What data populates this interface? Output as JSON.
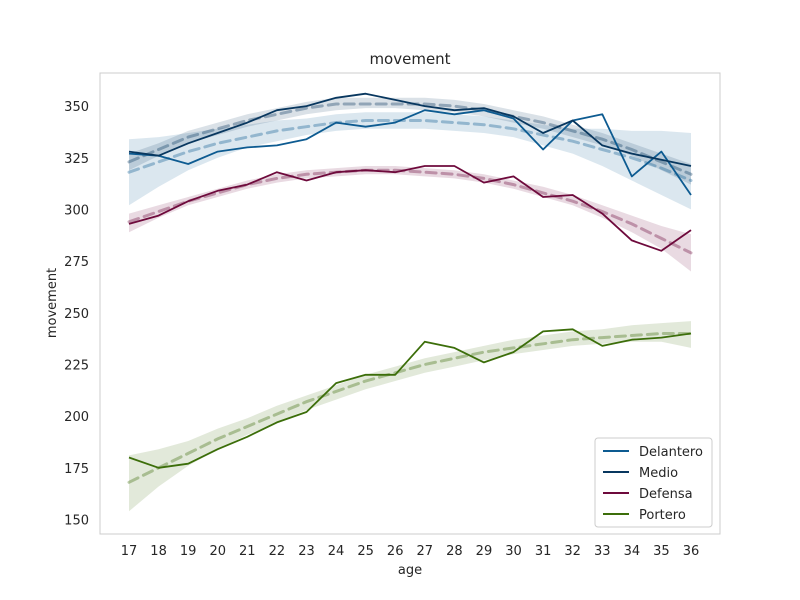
{
  "chart_data": {
    "type": "line",
    "title": "movement",
    "xlabel": "age",
    "ylabel": "movement",
    "ylim": [
      143,
      366
    ],
    "yticks": [
      150,
      175,
      200,
      225,
      250,
      275,
      300,
      325,
      350
    ],
    "x": [
      17,
      18,
      19,
      20,
      21,
      22,
      23,
      24,
      25,
      26,
      27,
      28,
      29,
      30,
      31,
      32,
      33,
      34,
      35,
      36
    ],
    "grid": false,
    "legend_position": "lower-right",
    "series": [
      {
        "name": "Delantero",
        "color": "#0d5b91",
        "values": [
          327,
          326,
          322,
          328,
          330,
          331,
          334,
          342,
          340,
          342,
          348,
          346,
          348,
          344,
          329,
          343,
          346,
          316,
          328,
          307
        ],
        "trend": [
          318,
          323,
          328,
          332,
          335,
          338,
          340,
          342,
          343,
          343,
          343,
          342,
          341,
          339,
          336,
          333,
          329,
          325,
          320,
          314
        ],
        "band": [
          [
            302,
            334
          ],
          [
            311,
            335
          ],
          [
            319,
            337
          ],
          [
            325,
            339
          ],
          [
            330,
            341
          ],
          [
            333,
            343
          ],
          [
            336,
            344
          ],
          [
            338,
            346
          ],
          [
            339,
            347
          ],
          [
            339,
            347
          ],
          [
            339,
            347
          ],
          [
            338,
            346
          ],
          [
            337,
            345
          ],
          [
            335,
            343
          ],
          [
            331,
            341
          ],
          [
            327,
            339
          ],
          [
            321,
            339
          ],
          [
            314,
            338
          ],
          [
            307,
            338
          ],
          [
            300,
            337
          ]
        ]
      },
      {
        "name": "Medio",
        "color": "#08375f",
        "values": [
          328,
          326,
          332,
          337,
          342,
          348,
          350,
          354,
          356,
          353,
          350,
          348,
          349,
          345,
          337,
          343,
          331,
          327,
          324,
          321
        ],
        "trend": [
          323,
          329,
          335,
          339,
          343,
          346,
          349,
          351,
          351,
          351,
          351,
          350,
          348,
          345,
          342,
          338,
          334,
          329,
          323,
          317
        ],
        "band": [
          [
            319,
            327
          ],
          [
            326,
            332
          ],
          [
            332,
            338
          ],
          [
            336,
            342
          ],
          [
            340,
            346
          ],
          [
            343,
            349
          ],
          [
            346,
            352
          ],
          [
            348,
            354
          ],
          [
            349,
            354
          ],
          [
            349,
            354
          ],
          [
            348,
            354
          ],
          [
            347,
            353
          ],
          [
            345,
            351
          ],
          [
            342,
            348
          ],
          [
            339,
            345
          ],
          [
            335,
            341
          ],
          [
            331,
            337
          ],
          [
            326,
            332
          ],
          [
            319,
            327
          ],
          [
            312,
            322
          ]
        ]
      },
      {
        "name": "Defensa",
        "color": "#6e0a3c",
        "values": [
          293,
          297,
          304,
          309,
          312,
          318,
          314,
          318,
          319,
          318,
          321,
          321,
          313,
          316,
          306,
          307,
          298,
          285,
          280,
          290
        ],
        "trend": [
          294,
          299,
          304,
          308,
          312,
          315,
          317,
          318,
          319,
          319,
          318,
          317,
          315,
          312,
          308,
          304,
          299,
          293,
          286,
          279
        ],
        "band": [
          [
            289,
            298
          ],
          [
            296,
            302
          ],
          [
            302,
            306
          ],
          [
            306,
            310
          ],
          [
            310,
            314
          ],
          [
            313,
            317
          ],
          [
            315,
            319
          ],
          [
            316,
            320
          ],
          [
            317,
            321
          ],
          [
            317,
            321
          ],
          [
            316,
            320
          ],
          [
            315,
            319
          ],
          [
            313,
            317
          ],
          [
            310,
            314
          ],
          [
            306,
            311
          ],
          [
            302,
            307
          ],
          [
            296,
            302
          ],
          [
            289,
            297
          ],
          [
            281,
            292
          ],
          [
            270,
            288
          ]
        ]
      },
      {
        "name": "Portero",
        "color": "#3c6e0a",
        "values": [
          180,
          175,
          177,
          184,
          190,
          197,
          202,
          216,
          220,
          220,
          236,
          233,
          226,
          231,
          241,
          242,
          234,
          237,
          238,
          240
        ],
        "trend": [
          168,
          175,
          182,
          189,
          195,
          201,
          207,
          212,
          217,
          221,
          225,
          228,
          231,
          233,
          235,
          237,
          238,
          239,
          240,
          240
        ],
        "band": [
          [
            154,
            181
          ],
          [
            166,
            184
          ],
          [
            176,
            188
          ],
          [
            184,
            194
          ],
          [
            191,
            199
          ],
          [
            197,
            205
          ],
          [
            203,
            210
          ],
          [
            208,
            215
          ],
          [
            213,
            220
          ],
          [
            217,
            224
          ],
          [
            221,
            228
          ],
          [
            224,
            231
          ],
          [
            227,
            234
          ],
          [
            230,
            237
          ],
          [
            232,
            239
          ],
          [
            234,
            241
          ],
          [
            235,
            242
          ],
          [
            236,
            244
          ],
          [
            236,
            245
          ],
          [
            233,
            246
          ]
        ]
      }
    ]
  }
}
